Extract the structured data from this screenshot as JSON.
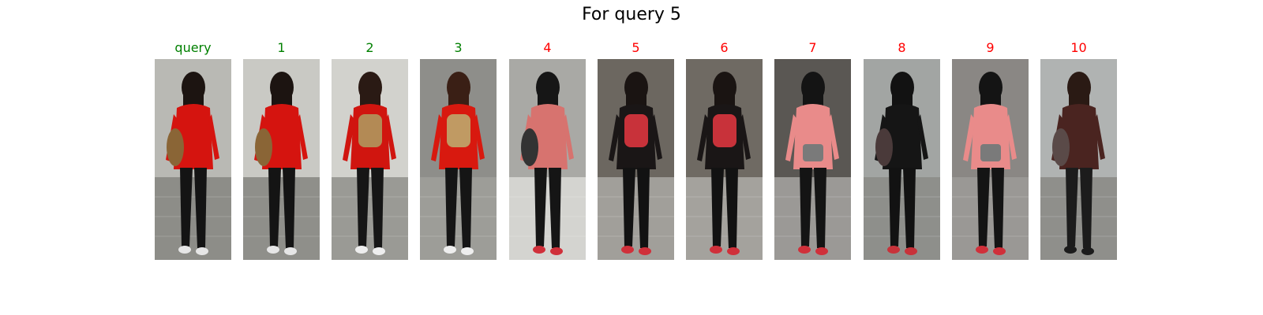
{
  "title": "For query 5",
  "colors": {
    "correct": "#008000",
    "wrong": "#ff0000"
  },
  "panels": [
    {
      "label": "query",
      "correct": true,
      "bg": "#b9b9b4",
      "floor": "#8d8d88",
      "hair": "#1c1411",
      "top": "#d5140f",
      "pants": "#141414",
      "shoe": "#e6e6e6",
      "bag": "#8a6536",
      "view": "side"
    },
    {
      "label": "1",
      "correct": true,
      "bg": "#c9c9c4",
      "floor": "#8f8f8a",
      "hair": "#1c1411",
      "top": "#d5140f",
      "pants": "#141414",
      "shoe": "#e6e6e6",
      "bag": "#8a6536",
      "view": "side"
    },
    {
      "label": "2",
      "correct": true,
      "bg": "#d2d2cd",
      "floor": "#9a9a95",
      "hair": "#2a1a14",
      "top": "#d0150f",
      "pants": "#161616",
      "shoe": "#eeeeee",
      "bag": "#b38a55",
      "view": "back"
    },
    {
      "label": "3",
      "correct": true,
      "bg": "#8e8e8a",
      "floor": "#9d9d98",
      "hair": "#3a1f15",
      "top": "#d8190f",
      "pants": "#151515",
      "shoe": "#eeeeee",
      "bag": "#c09a63",
      "view": "back"
    },
    {
      "label": "4",
      "correct": false,
      "bg": "#a9a9a5",
      "floor": "#d4d4d0",
      "hair": "#161616",
      "top": "#d7736f",
      "pants": "#151515",
      "shoe": "#d0303a",
      "bag": "#333333",
      "view": "side"
    },
    {
      "label": "5",
      "correct": false,
      "bg": "#6c6760",
      "floor": "#a19f9a",
      "hair": "#1a1412",
      "top": "#1a1616",
      "pants": "#121212",
      "shoe": "#d0303a",
      "bag": "#c8323a",
      "view": "back"
    },
    {
      "label": "6",
      "correct": false,
      "bg": "#6f6a63",
      "floor": "#a4a29d",
      "hair": "#1a1412",
      "top": "#1a1616",
      "pants": "#121212",
      "shoe": "#d0303a",
      "bag": "#c8323a",
      "view": "back"
    },
    {
      "label": "7",
      "correct": false,
      "bg": "#5a5753",
      "floor": "#9b9996",
      "hair": "#141414",
      "top": "#e98b8a",
      "pants": "#141414",
      "shoe": "#d0303a",
      "bag": "#7a7a7a",
      "view": "front"
    },
    {
      "label": "8",
      "correct": false,
      "bg": "#a2a5a3",
      "floor": "#8e8f8b",
      "hair": "#121212",
      "top": "#151515",
      "pants": "#121212",
      "shoe": "#c8323a",
      "bag": "#4a3a3a",
      "view": "side"
    },
    {
      "label": "9",
      "correct": false,
      "bg": "#8a8784",
      "floor": "#9a9895",
      "hair": "#141414",
      "top": "#e98b8a",
      "pants": "#141414",
      "shoe": "#d0303a",
      "bag": "#7a7a7a",
      "view": "front"
    },
    {
      "label": "10",
      "correct": false,
      "bg": "#b0b3b2",
      "floor": "#8f8f8b",
      "hair": "#2a1a14",
      "top": "#4a2420",
      "pants": "#1c1c1c",
      "shoe": "#1c1c1c",
      "bag": "#5a4a48",
      "view": "side"
    }
  ]
}
